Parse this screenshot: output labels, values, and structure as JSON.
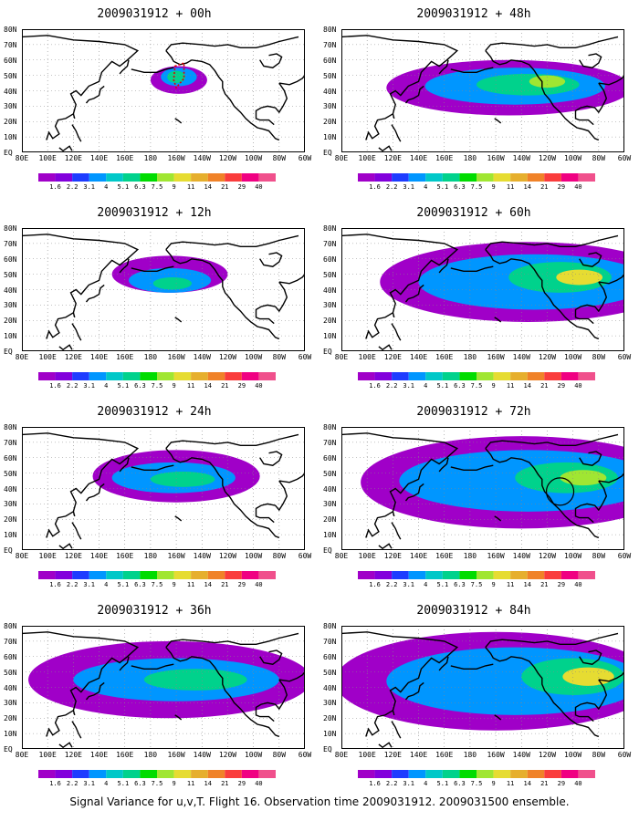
{
  "caption": "Signal Variance for u,v,T. Flight 16. Observation time 2009031912. 2009031500 ensemble.",
  "lon_labels": [
    "80E",
    "100E",
    "120E",
    "140E",
    "160E",
    "180",
    "160W",
    "140W",
    "120W",
    "100W",
    "80W",
    "60W"
  ],
  "lat_labels": [
    "80N",
    "70N",
    "60N",
    "50N",
    "40N",
    "30N",
    "20N",
    "10N",
    "EQ"
  ],
  "colorbar": {
    "labels": [
      "1.6",
      "2.2",
      "3.1",
      "4",
      "5.1",
      "6.3",
      "7.5",
      "9",
      "11",
      "14",
      "21",
      "29",
      "40"
    ],
    "colors": [
      "#a000c8",
      "#8200dc",
      "#1e3cff",
      "#0096ff",
      "#00c8c8",
      "#00d28c",
      "#00dc00",
      "#a0e632",
      "#e6dc32",
      "#e6af2d",
      "#f08228",
      "#fa3c3c",
      "#f00082"
    ]
  },
  "panels": [
    {
      "title": "2009031912 + 00h",
      "forecast_hour": 0
    },
    {
      "title": "2009031912 + 48h",
      "forecast_hour": 48
    },
    {
      "title": "2009031912 + 12h",
      "forecast_hour": 12
    },
    {
      "title": "2009031912 + 60h",
      "forecast_hour": 60
    },
    {
      "title": "2009031912 + 24h",
      "forecast_hour": 24
    },
    {
      "title": "2009031912 + 72h",
      "forecast_hour": 72
    },
    {
      "title": "2009031912 + 36h",
      "forecast_hour": 36
    },
    {
      "title": "2009031912 + 84h",
      "forecast_hour": 84
    }
  ]
}
